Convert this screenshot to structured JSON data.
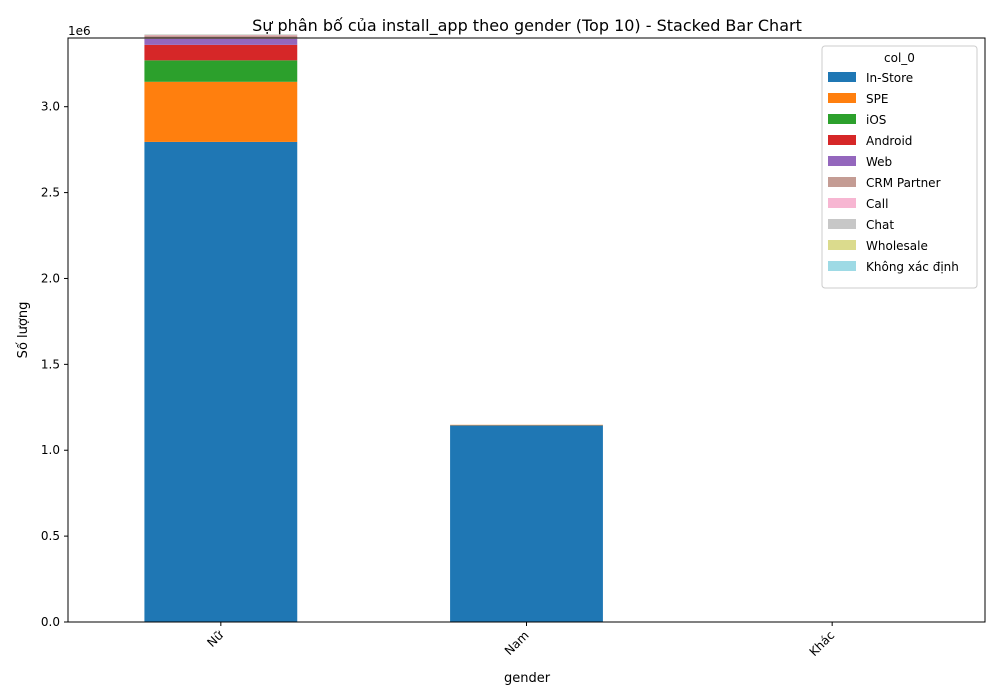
{
  "chart_data": {
    "type": "bar",
    "stacked": true,
    "title": "Sự phân bố của install_app theo gender (Top 10) - Stacked Bar Chart",
    "xlabel": "gender",
    "ylabel": "Số lượng",
    "y_multiplier_label": "1e6",
    "y_tick_values": [
      0,
      0.5,
      1.0,
      1.5,
      2.0,
      2.5,
      3.0
    ],
    "y_tick_labels": [
      "0.0",
      "0.5",
      "1.0",
      "1.5",
      "2.0",
      "2.5",
      "3.0"
    ],
    "ylim": [
      0,
      3.4
    ],
    "categories": [
      "Nữ",
      "Nam",
      "Khác"
    ],
    "legend": {
      "title": "col_0",
      "position": "top-right"
    },
    "grid": false,
    "series": [
      {
        "name": "In-Store",
        "color": "#1f77b4",
        "values": [
          2.795,
          1.145,
          0
        ]
      },
      {
        "name": "SPE",
        "color": "#ff7f0e",
        "values": [
          0.35,
          0.003,
          0
        ]
      },
      {
        "name": "iOS",
        "color": "#2ca02c",
        "values": [
          0.125,
          0,
          0
        ]
      },
      {
        "name": "Android",
        "color": "#d62728",
        "values": [
          0.09,
          0,
          0
        ]
      },
      {
        "name": "Web",
        "color": "#9467bd",
        "values": [
          0.035,
          0,
          0
        ]
      },
      {
        "name": "CRM Partner",
        "color": "#c49c94",
        "values": [
          0.02,
          0,
          0
        ]
      },
      {
        "name": "Call",
        "color": "#f7b6d2",
        "values": [
          0.003,
          0,
          0
        ]
      },
      {
        "name": "Chat",
        "color": "#c7c7c7",
        "values": [
          0.002,
          0,
          0
        ]
      },
      {
        "name": "Wholesale",
        "color": "#dbdb8d",
        "values": [
          0.001,
          0,
          0
        ]
      },
      {
        "name": "Không xác định",
        "color": "#9edae5",
        "values": [
          0.001,
          0,
          0
        ]
      }
    ]
  }
}
